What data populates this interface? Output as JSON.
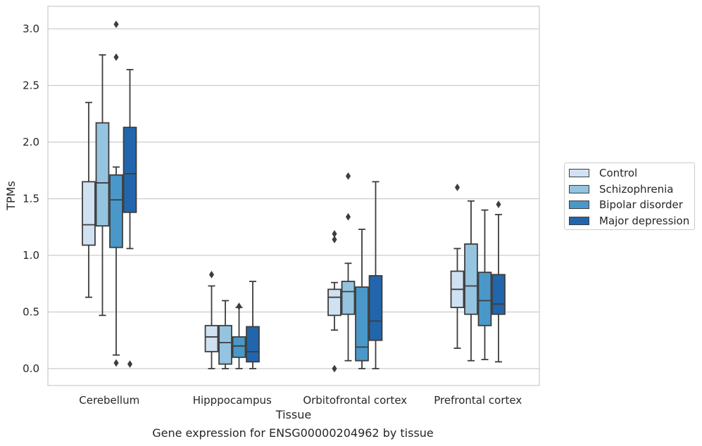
{
  "chart_data": {
    "type": "box",
    "title": "",
    "xlabel": "Tissue",
    "ylabel": "TPMs",
    "ylim": [
      -0.15,
      3.2
    ],
    "yticks": [
      "0.0",
      "0.5",
      "1.0",
      "1.5",
      "2.0",
      "2.5",
      "3.0"
    ],
    "ytick_values": [
      0,
      0.5,
      1.0,
      1.5,
      2.0,
      2.5,
      3.0
    ],
    "grid": "horizontal",
    "legend_position": "right",
    "categories": [
      "Cerebellum",
      "Hipppocampus",
      "Orbitofrontal cortex",
      "Prefrontal cortex"
    ],
    "series": [
      {
        "name": "Control",
        "color": "#d0e1f2",
        "boxes": [
          {
            "whislo": 0.63,
            "q1": 1.09,
            "med": 1.27,
            "q3": 1.65,
            "whishi": 2.35,
            "fliers": []
          },
          {
            "whislo": 0.0,
            "q1": 0.15,
            "med": 0.28,
            "q3": 0.38,
            "whishi": 0.73,
            "fliers": [
              0.83
            ]
          },
          {
            "whislo": 0.34,
            "q1": 0.47,
            "med": 0.63,
            "q3": 0.7,
            "whishi": 0.76,
            "fliers": [
              0.0,
              1.14,
              1.19
            ]
          },
          {
            "whislo": 0.18,
            "q1": 0.54,
            "med": 0.7,
            "q3": 0.86,
            "whishi": 1.06,
            "fliers": [
              1.6
            ]
          }
        ]
      },
      {
        "name": "Schizophrenia",
        "color": "#94c4df",
        "boxes": [
          {
            "whislo": 0.47,
            "q1": 1.26,
            "med": 1.64,
            "q3": 2.17,
            "whishi": 2.77,
            "fliers": []
          },
          {
            "whislo": 0.0,
            "q1": 0.04,
            "med": 0.23,
            "q3": 0.38,
            "whishi": 0.6,
            "fliers": []
          },
          {
            "whislo": 0.07,
            "q1": 0.48,
            "med": 0.68,
            "q3": 0.77,
            "whishi": 0.93,
            "fliers": [
              1.34,
              1.7
            ]
          },
          {
            "whislo": 0.07,
            "q1": 0.48,
            "med": 0.73,
            "q3": 1.1,
            "whishi": 1.48,
            "fliers": []
          }
        ]
      },
      {
        "name": "Bipolar disorder",
        "color": "#4a98c9",
        "boxes": [
          {
            "whislo": 0.12,
            "q1": 1.07,
            "med": 1.49,
            "q3": 1.71,
            "whishi": 1.78,
            "fliers": [
              0.05,
              2.75,
              3.04
            ]
          },
          {
            "whislo": 0.0,
            "q1": 0.1,
            "med": 0.2,
            "q3": 0.28,
            "whishi": 0.54,
            "fliers": [
              0.55
            ]
          },
          {
            "whislo": 0.0,
            "q1": 0.07,
            "med": 0.19,
            "q3": 0.72,
            "whishi": 1.23,
            "fliers": []
          },
          {
            "whislo": 0.08,
            "q1": 0.38,
            "med": 0.6,
            "q3": 0.85,
            "whishi": 1.4,
            "fliers": []
          }
        ]
      },
      {
        "name": "Major depression",
        "color": "#2166ac",
        "boxes": [
          {
            "whislo": 1.06,
            "q1": 1.38,
            "med": 1.72,
            "q3": 2.13,
            "whishi": 2.64,
            "fliers": [
              0.04
            ]
          },
          {
            "whislo": 0.0,
            "q1": 0.06,
            "med": 0.15,
            "q3": 0.37,
            "whishi": 0.77,
            "fliers": []
          },
          {
            "whislo": 0.0,
            "q1": 0.25,
            "med": 0.42,
            "q3": 0.82,
            "whishi": 1.65,
            "fliers": []
          },
          {
            "whislo": 0.06,
            "q1": 0.48,
            "med": 0.57,
            "q3": 0.83,
            "whishi": 1.36,
            "fliers": [
              1.45
            ]
          }
        ]
      }
    ]
  },
  "caption": "Gene expression for ENSG00000204962 by tissue"
}
